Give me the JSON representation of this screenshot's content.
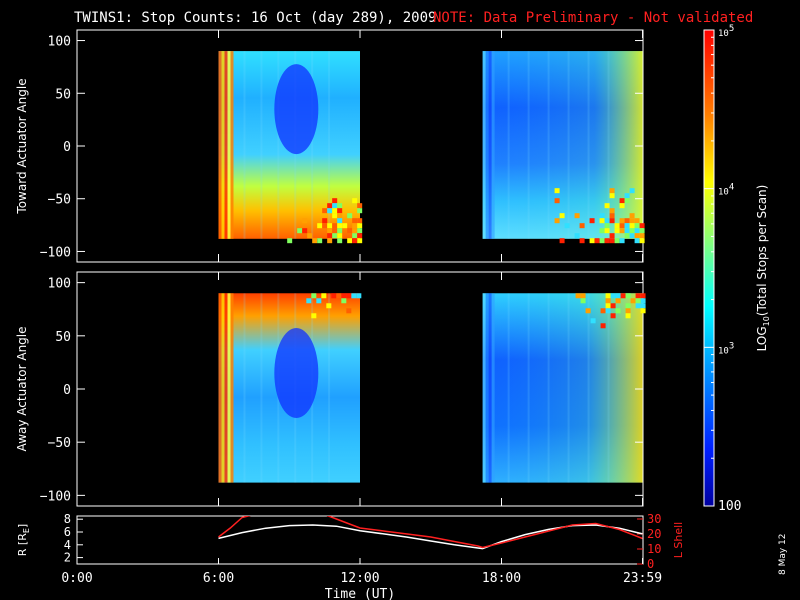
{
  "header": {
    "title": "TWINS1: Stop Counts: 16 Oct (day 289), 2009",
    "note": "NOTE: Data Preliminary - Not validated",
    "note_color": "#ff2020"
  },
  "side_stamp": "8 May 12",
  "chart_data": [
    {
      "type": "heatmap",
      "panel": "toward",
      "ylabel": "Toward Actuator Angle",
      "ylim": [
        -110,
        110
      ],
      "yticks": [
        100,
        50,
        0,
        -50,
        -100
      ],
      "xlim": [
        0,
        24
      ],
      "data_blocks": [
        {
          "x_start": 6.0,
          "x_end": 12.0,
          "y_start": -88,
          "y_end": 90
        },
        {
          "x_start": 17.2,
          "x_end": 23.98,
          "y_start": -88,
          "y_end": 90
        }
      ]
    },
    {
      "type": "heatmap",
      "panel": "away",
      "ylabel": "Away Actuator Angle",
      "ylim": [
        -110,
        110
      ],
      "yticks": [
        100,
        50,
        0,
        -50,
        -100
      ],
      "xlim": [
        0,
        24
      ],
      "data_blocks": [
        {
          "x_start": 6.0,
          "x_end": 12.0,
          "y_start": -88,
          "y_end": 90
        },
        {
          "x_start": 17.2,
          "x_end": 23.98,
          "y_start": -88,
          "y_end": 90
        }
      ]
    },
    {
      "type": "line",
      "panel": "ephemeris",
      "ylabel_left": "R [R",
      "ylabel_left_sub": "E",
      "ylabel_left_close": "]",
      "ylabel_right": "L Shell",
      "ylim_left": [
        1,
        8.5
      ],
      "yticks_left": [
        8,
        6,
        4,
        2
      ],
      "ylim_right": [
        0,
        32
      ],
      "yticks_right": [
        30,
        20,
        10,
        0
      ],
      "xlim": [
        0,
        24
      ],
      "xticks": [
        "0:00",
        "6:00",
        "12:00",
        "18:00",
        "23:59"
      ],
      "xtick_values": [
        0,
        6,
        12,
        18,
        23.98
      ],
      "xlabel": "Time (UT)",
      "series": [
        {
          "axis": "left",
          "color": "#ffffff",
          "x": [
            6,
            7,
            8,
            9,
            10,
            11,
            12,
            13,
            14,
            15,
            16,
            17,
            17.2,
            18,
            19,
            20,
            21,
            22,
            23,
            23.98
          ],
          "y": [
            5.0,
            5.9,
            6.6,
            7.0,
            7.1,
            6.9,
            6.2,
            5.7,
            5.2,
            4.6,
            4.0,
            3.5,
            3.4,
            4.5,
            5.6,
            6.4,
            7.0,
            7.1,
            6.6,
            5.7
          ]
        },
        {
          "axis": "right",
          "color": "#ff2020",
          "x": [
            6,
            6.5,
            7,
            7.5,
            10.5,
            11,
            12,
            13,
            14,
            15,
            16,
            17,
            17.2,
            18,
            19,
            20,
            21,
            22,
            23,
            23.98
          ],
          "y": [
            18,
            24,
            31,
            33,
            33,
            30,
            24,
            22,
            20,
            18,
            15,
            12,
            11,
            14,
            18,
            22,
            26,
            27,
            23,
            17
          ]
        }
      ]
    },
    {
      "type": "colorbar",
      "label": "LOG",
      "label_sub": "10",
      "label_rest": "(Total Stops per Scan)",
      "range": [
        100,
        100000
      ],
      "ticks": [
        {
          "value": 100000,
          "base": "10",
          "exp": "5"
        },
        {
          "value": 10000,
          "base": "10",
          "exp": "4"
        },
        {
          "value": 1000,
          "base": "10",
          "exp": "3"
        },
        {
          "value": 100,
          "text": "100"
        }
      ]
    }
  ]
}
